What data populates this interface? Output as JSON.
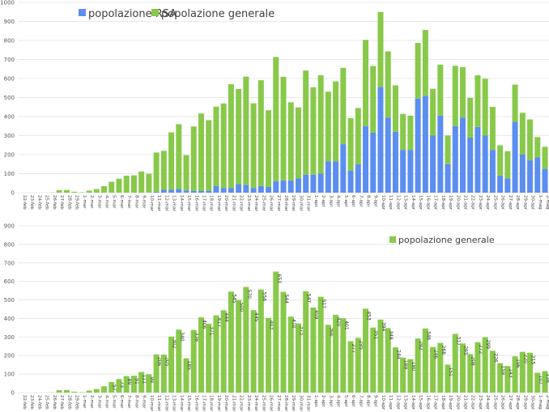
{
  "chart_data": [
    {
      "type": "bar",
      "stacked": true,
      "title": "",
      "xlabel": "",
      "ylabel": "",
      "ylim": [
        0,
        1000
      ],
      "yticks": [
        0,
        100,
        200,
        300,
        400,
        500,
        600,
        700,
        800,
        900,
        1000
      ],
      "grid": true,
      "legend_position": "top-left",
      "colors": {
        "popolazione RSA": "#5b8ef0",
        "popolazione generale": "#88c94a"
      },
      "categories": [
        "22-feb",
        "23-feb",
        "24-feb",
        "25-feb",
        "26-feb",
        "27-feb",
        "28-feb",
        "29-feb",
        "1-mar",
        "2-mar",
        "3-mar",
        "4-mar",
        "5-mar",
        "6-mar",
        "7-mar",
        "8-mar",
        "9-mar",
        "10-mar",
        "11-mar",
        "12-mar",
        "13-mar",
        "14-mar",
        "15-mar",
        "16-mar",
        "17-mar",
        "18-mar",
        "19-mar",
        "20-mar",
        "21-mar",
        "22-mar",
        "23-mar",
        "24-mar",
        "25-mar",
        "26-mar",
        "27-mar",
        "28-mar",
        "29-mar",
        "30-mar",
        "31-mar",
        "1-apr",
        "2-apr",
        "3-apr",
        "4-apr",
        "5-apr",
        "6-apr",
        "7-apr",
        "8-apr",
        "9-apr",
        "10-apr",
        "11-apr",
        "12-apr",
        "13-apr",
        "14-apr",
        "15-apr",
        "16-apr",
        "17-apr",
        "18-apr",
        "19-apr",
        "20-apr",
        "21-apr",
        "22-apr",
        "23-apr",
        "24-apr",
        "25-apr",
        "26-apr",
        "27-apr",
        "28-apr",
        "29-apr",
        "30-apr",
        "1-mag",
        "2-mag"
      ],
      "series": [
        {
          "name": "popolazione RSA",
          "values": [
            0,
            0,
            0,
            0,
            0,
            0,
            0,
            0,
            0,
            0,
            0,
            0,
            0,
            0,
            0,
            0,
            0,
            0,
            5,
            15,
            15,
            20,
            12,
            10,
            10,
            10,
            35,
            25,
            25,
            45,
            40,
            25,
            35,
            30,
            60,
            65,
            65,
            75,
            95,
            95,
            100,
            165,
            165,
            255,
            115,
            150,
            350,
            315,
            556,
            395,
            320,
            225,
            225,
            495,
            509,
            300,
            405,
            150,
            350,
            395,
            290,
            345,
            300,
            225,
            90,
            75,
            372,
            200,
            170,
            185,
            125
          ]
        },
        {
          "name": "popolazione generale",
          "values": [
            0,
            0,
            0,
            0,
            1,
            13,
            14,
            5,
            2,
            11,
            19,
            34,
            57,
            73,
            89,
            91,
            111,
            99,
            206,
            205,
            302,
            340,
            185,
            338,
            406,
            371,
            417,
            444,
            545,
            500,
            570,
            445,
            556,
            403,
            653,
            544,
            410,
            373,
            547,
            459,
            517,
            366,
            420,
            401,
            277,
            295,
            453,
            351,
            394,
            348,
            244,
            189,
            180,
            292,
            346,
            246,
            268,
            151,
            317,
            265,
            208,
            272,
            299,
            226,
            159,
            143,
            196,
            220,
            215,
            107,
            116
          ]
        }
      ]
    },
    {
      "type": "bar",
      "title": "",
      "xlabel": "",
      "ylabel": "",
      "ylim": [
        0,
        900
      ],
      "yticks": [
        0,
        100,
        200,
        300,
        400,
        500,
        600,
        700,
        800,
        900
      ],
      "grid": true,
      "legend_position": "top-right",
      "data_labels": true,
      "series_name": "popolazione generale",
      "color": "#88c94a"
    }
  ]
}
